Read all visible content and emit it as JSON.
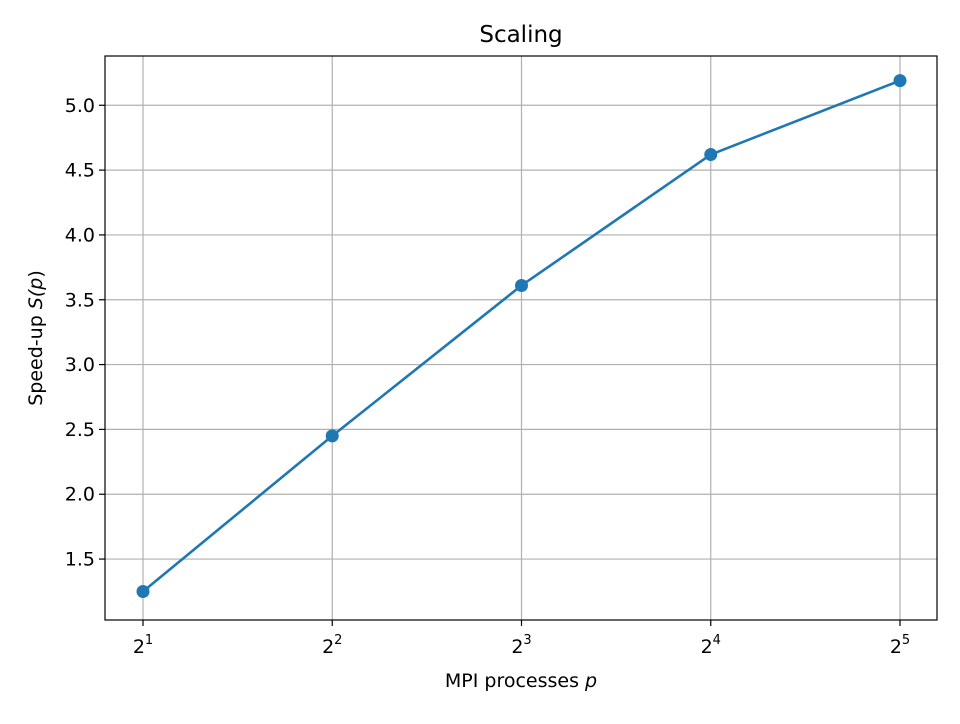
{
  "chart_data": {
    "type": "line",
    "title": "Scaling",
    "xlabel": "MPI processes",
    "xlabel_var": "p",
    "ylabel": "Speed-up",
    "ylabel_func": "S(",
    "ylabel_var": "p",
    "ylabel_close": ")",
    "x_scale": "log2",
    "x_ticks": [
      {
        "base": "2",
        "exp": "1"
      },
      {
        "base": "2",
        "exp": "2"
      },
      {
        "base": "2",
        "exp": "3"
      },
      {
        "base": "2",
        "exp": "4"
      },
      {
        "base": "2",
        "exp": "5"
      }
    ],
    "y_ticks": [
      "1.5",
      "2.0",
      "2.5",
      "3.0",
      "3.5",
      "4.0",
      "4.5",
      "5.0"
    ],
    "ylim": [
      1.03,
      5.38
    ],
    "grid": true,
    "series": [
      {
        "x": [
          2,
          4,
          8,
          16,
          32
        ],
        "values": [
          1.25,
          2.45,
          3.61,
          4.62,
          5.19
        ],
        "color": "#1f77b4",
        "marker": "circle"
      }
    ]
  }
}
